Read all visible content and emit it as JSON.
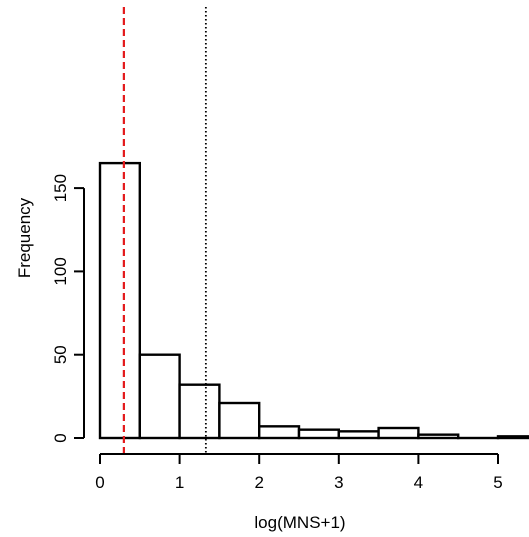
{
  "chart_data": {
    "type": "bar",
    "title": "",
    "xlabel": "log(MNS+1)",
    "ylabel": "Frequency",
    "bin_edges": [
      0,
      0.5,
      1,
      1.5,
      2,
      2.5,
      3,
      3.5,
      4,
      4.5,
      5,
      5.5
    ],
    "values": [
      165,
      50,
      32,
      21,
      7,
      5,
      4,
      6,
      2,
      0,
      1
    ],
    "xlim": [
      -0.1,
      5.35
    ],
    "ylim": [
      0,
      170
    ],
    "x_ticks": [
      0,
      1,
      2,
      3,
      4,
      5
    ],
    "x_tick_labels": [
      "0",
      "1",
      "2",
      "3",
      "4",
      "5"
    ],
    "y_ticks": [
      0,
      50,
      100,
      150
    ],
    "y_tick_labels": [
      "0",
      "50",
      "100",
      "150"
    ],
    "reference_lines": [
      {
        "x": 0.3,
        "style": "dashed",
        "color": "#e31a1c"
      },
      {
        "x": 1.33,
        "style": "dotted",
        "color": "#000000"
      }
    ],
    "grid": false,
    "legend": "none"
  }
}
